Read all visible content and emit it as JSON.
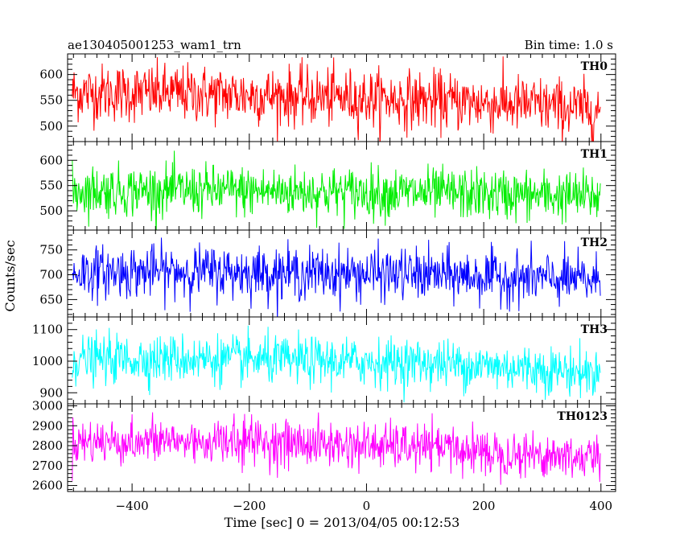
{
  "header": {
    "left_title": "ae130405001253_wam1_trn",
    "right_title": "Bin time: 1.0 s"
  },
  "chart_data": {
    "type": "line",
    "xlabel": "Time [sec] 0 = 2013/04/05 00:12:53",
    "ylabel": "Counts/sec",
    "xlim": [
      -510,
      425
    ],
    "x_ticks": [
      -400,
      -200,
      0,
      200,
      400
    ],
    "x_range": [
      -502,
      399
    ],
    "bin_time": 1.0,
    "panels": [
      {
        "name": "TH0",
        "color": "#ff0000",
        "ylim": [
          470,
          640
        ],
        "y_ticks": [
          500,
          550,
          600
        ],
        "trend": [
          [
            -502,
            565
          ],
          [
            -300,
            563
          ],
          [
            -100,
            557
          ],
          [
            100,
            550
          ],
          [
            300,
            540
          ],
          [
            399,
            530
          ]
        ],
        "scatter": 28,
        "spike_max": 640
      },
      {
        "name": "TH1",
        "color": "#00ee00",
        "ylim": [
          462,
          637
        ],
        "y_ticks": [
          500,
          550,
          600
        ],
        "trend": [
          [
            -502,
            540
          ],
          [
            -300,
            540
          ],
          [
            -100,
            538
          ],
          [
            100,
            535
          ],
          [
            300,
            530
          ],
          [
            399,
            528
          ]
        ],
        "scatter": 25,
        "spike_max": 632
      },
      {
        "name": "TH2",
        "color": "#0000ff",
        "ylim": [
          615,
          790
        ],
        "y_ticks": [
          650,
          700,
          750
        ],
        "trend": [
          [
            -502,
            705
          ],
          [
            -300,
            707
          ],
          [
            -100,
            703
          ],
          [
            100,
            700
          ],
          [
            300,
            692
          ],
          [
            399,
            688
          ]
        ],
        "scatter": 26,
        "spike_max": 788
      },
      {
        "name": "TH3",
        "color": "#00ffff",
        "ylim": [
          865,
          1140
        ],
        "y_ticks": [
          900,
          1000,
          1100
        ],
        "trend": [
          [
            -502,
            1005
          ],
          [
            -300,
            1008
          ],
          [
            -100,
            1000
          ],
          [
            100,
            995
          ],
          [
            300,
            975
          ],
          [
            399,
            960
          ]
        ],
        "scatter": 38,
        "spike_max": 1125
      },
      {
        "name": "TH0123",
        "color": "#ff00ff",
        "ylim": [
          2570,
          3010
        ],
        "y_ticks": [
          2600,
          2700,
          2800,
          2900,
          3000
        ],
        "trend": [
          [
            -502,
            2820
          ],
          [
            -300,
            2822
          ],
          [
            -100,
            2810
          ],
          [
            100,
            2790
          ],
          [
            300,
            2755
          ],
          [
            399,
            2735
          ]
        ],
        "scatter": 58,
        "spike_max": 2970
      }
    ]
  }
}
